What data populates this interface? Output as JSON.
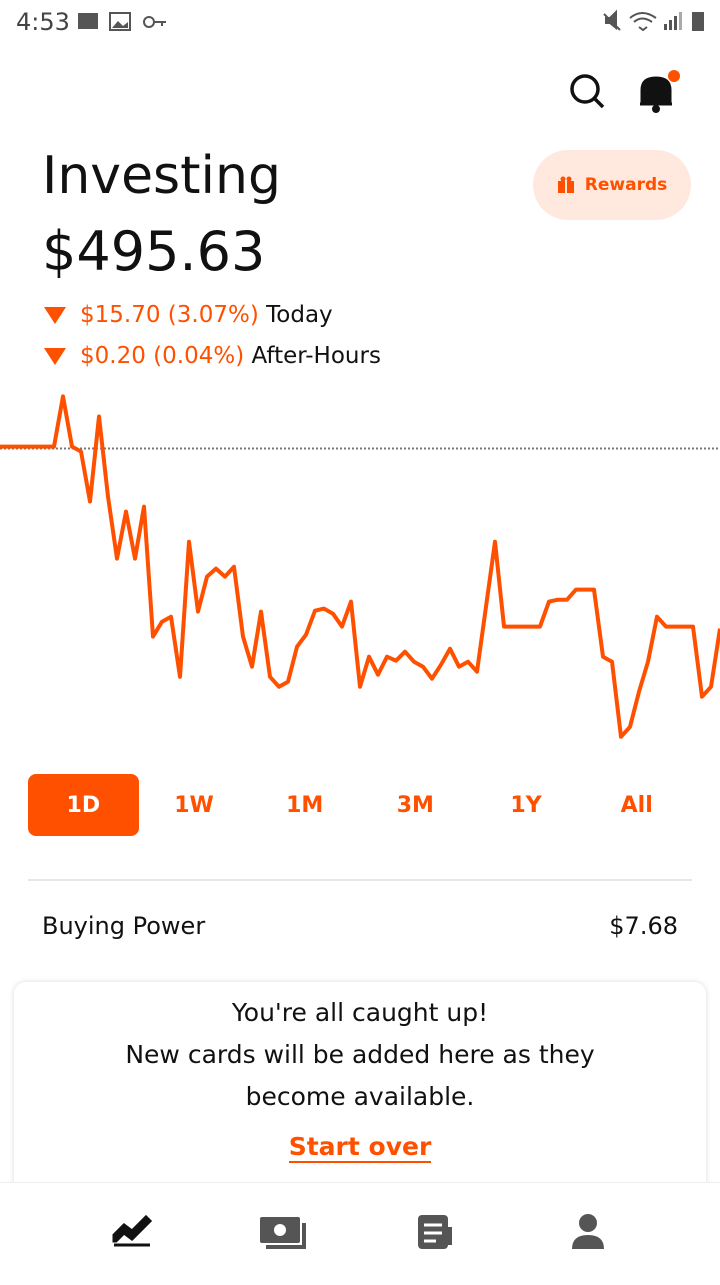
{
  "status_bar": {
    "time": "4:53"
  },
  "header": {
    "title": "Investing",
    "value": "$495.63",
    "rewards": "Rewards",
    "today_change": "$15.70 (3.07%)",
    "today_label": "Today",
    "after_hours_change": "$0.20 (0.04%)",
    "after_hours_label": "After-Hours"
  },
  "chart": {
    "type": "line",
    "color": "#ff5000",
    "ylim": [
      484,
      518
    ],
    "baseline": 511.33,
    "values": [
      511.5,
      511.5,
      511.5,
      511.5,
      511.5,
      511.5,
      511.5,
      515.87,
      511.5,
      511.07,
      506.71,
      514.12,
      507.14,
      501.73,
      505.83,
      501.73,
      506.27,
      494.93,
      496.23,
      496.67,
      491.43,
      503.21,
      497.11,
      500.16,
      500.86,
      500.16,
      501.03,
      494.93,
      492.31,
      497.11,
      491.43,
      490.56,
      491.0,
      494.05,
      495.1,
      497.19,
      497.37,
      496.93,
      495.8,
      497.98,
      490.56,
      493.18,
      491.61,
      493.18,
      492.83,
      493.62,
      492.74,
      492.31,
      491.26,
      492.48,
      493.88,
      492.31,
      492.74,
      491.87,
      497.54,
      503.21,
      495.8,
      495.8,
      495.8,
      495.8,
      495.8,
      497.98,
      498.15,
      498.15,
      499.03,
      499.03,
      499.03,
      493.18,
      492.74,
      486.2,
      487.07,
      490.13,
      492.74,
      496.67,
      495.8,
      495.8,
      495.8,
      495.8,
      489.69,
      490.56,
      495.63
    ]
  },
  "ranges": [
    "1D",
    "1W",
    "1M",
    "3M",
    "1Y",
    "All"
  ],
  "buying_power": {
    "label": "Buying Power",
    "value": "$7.68"
  },
  "card": {
    "line1": "You're all caught up!",
    "line2": "New cards will be added here as they",
    "line3": "become available.",
    "link": "Start over"
  }
}
